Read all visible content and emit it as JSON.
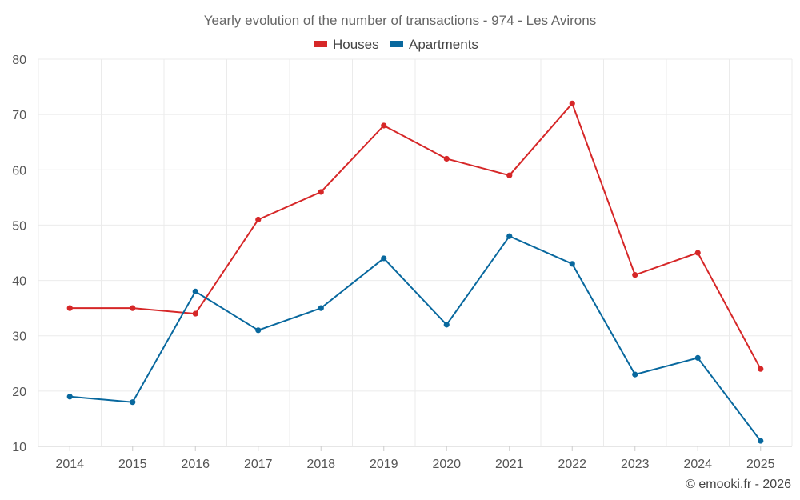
{
  "chart_data": {
    "type": "line",
    "title": "Yearly evolution of the number of transactions - 974 - Les Avirons",
    "xlabel": "",
    "ylabel": "",
    "ylim": [
      10,
      80
    ],
    "yticks": [
      10,
      20,
      30,
      40,
      50,
      60,
      70,
      80
    ],
    "categories": [
      "2014",
      "2015",
      "2016",
      "2017",
      "2018",
      "2019",
      "2020",
      "2021",
      "2022",
      "2023",
      "2024",
      "2025"
    ],
    "series": [
      {
        "name": "Houses",
        "color": "#d62728",
        "values": [
          35,
          35,
          34,
          51,
          56,
          68,
          62,
          59,
          72,
          41,
          45,
          24
        ]
      },
      {
        "name": "Apartments",
        "color": "#08689e",
        "values": [
          19,
          18,
          38,
          31,
          35,
          44,
          32,
          48,
          43,
          23,
          26,
          11
        ]
      }
    ],
    "legend_position": "top-center",
    "grid": true
  },
  "credit": "© emooki.fr - 2026"
}
